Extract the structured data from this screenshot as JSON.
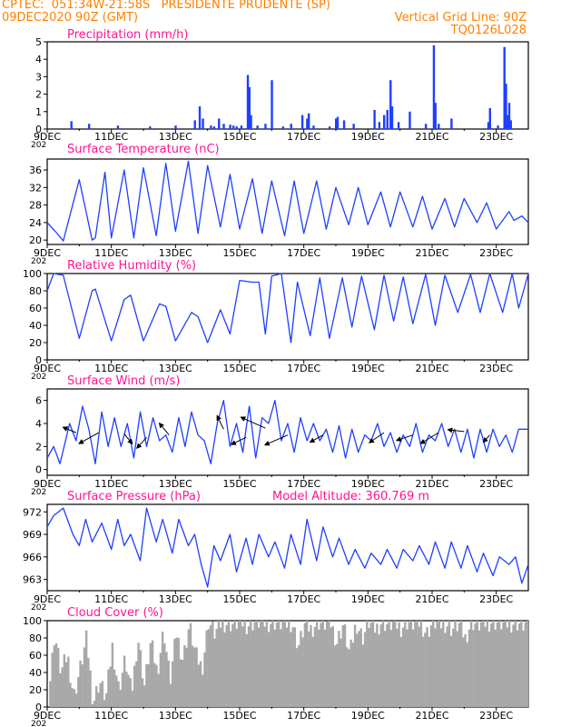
{
  "header": {
    "line1_left": "CPTEC:  051:34W-21:58S   PRESIDENTE PRUDENTE (SP)",
    "line2_left": "09DEC2020 90Z (GMT)",
    "line2_right": "Vertical Grid Line: 90Z",
    "line3_right": "TQ0126L028",
    "color": "#ff7f00",
    "year_stub": "202"
  },
  "colors": {
    "title": "#ff1493",
    "series": "#1f3fff",
    "bar": "#1f3fff",
    "arrow": "#000000",
    "cloud": "#a8a8a8",
    "axis": "#000000"
  },
  "x_ticks": [
    "9DEC",
    "11DEC",
    "13DEC",
    "15DEC",
    "17DEC",
    "19DEC",
    "21DEC",
    "23DEC"
  ],
  "chart_data": [
    {
      "id": "precip",
      "type": "bar",
      "title": "Precipitation  (mm/h)",
      "ylim": [
        0,
        5
      ],
      "yticks": [
        "0",
        "1",
        "2",
        "3",
        "4",
        "5"
      ],
      "x": [
        0.75,
        1.3,
        2.2,
        3.2,
        4.0,
        4.6,
        4.75,
        4.85,
        5.1,
        5.2,
        5.35,
        5.5,
        5.7,
        5.8,
        5.9,
        6.05,
        6.25,
        6.3,
        6.35,
        6.55,
        6.8,
        7.0,
        7.35,
        7.6,
        7.95,
        8.1,
        8.15,
        8.3,
        8.8,
        9.0,
        9.05,
        9.25,
        9.55,
        10.2,
        10.35,
        10.5,
        10.6,
        10.7,
        10.75,
        10.95,
        11.3,
        11.8,
        12.05,
        12.1,
        12.2,
        12.6,
        13.75,
        13.8,
        14.05,
        14.25,
        14.3,
        14.35,
        14.4,
        14.45
      ],
      "values": [
        0.45,
        0.3,
        0.2,
        0.15,
        0.2,
        0.5,
        1.3,
        0.6,
        0.2,
        0.15,
        0.6,
        0.3,
        0.25,
        0.2,
        0.15,
        0.2,
        3.1,
        2.4,
        0.8,
        0.2,
        0.3,
        2.8,
        0.15,
        0.3,
        0.8,
        0.6,
        0.9,
        0.2,
        0.15,
        0.6,
        0.7,
        0.5,
        0.3,
        1.1,
        0.4,
        0.8,
        1.1,
        2.8,
        1.3,
        0.4,
        1.0,
        0.3,
        4.8,
        1.5,
        0.3,
        0.6,
        0.4,
        1.2,
        0.2,
        4.7,
        2.6,
        0.8,
        1.5,
        0.5
      ]
    },
    {
      "id": "temp",
      "type": "line",
      "title": "Surface Temperature (nC)",
      "ylim": [
        19,
        38.5
      ],
      "yticks": [
        "20",
        "24",
        "28",
        "32",
        "36"
      ],
      "ytick_values": [
        20,
        24,
        28,
        32,
        36
      ],
      "x": [
        0,
        0.25,
        0.5,
        1.0,
        1.4,
        1.5,
        1.8,
        2.0,
        2.4,
        2.7,
        3.0,
        3.4,
        3.7,
        4.0,
        4.4,
        4.7,
        5.0,
        5.4,
        5.7,
        6.0,
        6.4,
        6.7,
        7.0,
        7.4,
        7.7,
        8.0,
        8.4,
        8.7,
        9.0,
        9.4,
        9.7,
        10.0,
        10.4,
        10.7,
        11.0,
        11.4,
        11.7,
        12.0,
        12.4,
        12.7,
        13.0,
        13.4,
        13.7,
        14.0,
        14.4,
        14.55,
        14.8,
        15.0
      ],
      "values": [
        24,
        22,
        19.8,
        33.8,
        20,
        20.5,
        35.5,
        20.5,
        36,
        20.5,
        36.5,
        21,
        37.5,
        22,
        38,
        21.5,
        37,
        23,
        35,
        22.5,
        34,
        21.5,
        33.5,
        21,
        33.5,
        21.5,
        33.5,
        22.5,
        32,
        23.5,
        32,
        23.5,
        31,
        23,
        31,
        23,
        30,
        22.5,
        29.5,
        23,
        29.5,
        24,
        28.5,
        22.5,
        26.5,
        24.5,
        25.5,
        24
      ]
    },
    {
      "id": "rh",
      "type": "line",
      "title": "Relative Humidity  (%)",
      "ylim": [
        0,
        100
      ],
      "yticks": [
        "0",
        "20",
        "40",
        "60",
        "80",
        "100"
      ],
      "ytick_values": [
        0,
        20,
        40,
        60,
        80,
        100
      ],
      "x": [
        0,
        0.2,
        0.5,
        1.0,
        1.4,
        1.5,
        2.0,
        2.4,
        2.6,
        3.0,
        3.5,
        3.7,
        4.0,
        4.5,
        4.7,
        5.0,
        5.4,
        5.7,
        6.0,
        6.4,
        6.5,
        6.6,
        6.8,
        7.0,
        7.3,
        7.6,
        7.8,
        8.2,
        8.5,
        8.8,
        9.2,
        9.5,
        9.8,
        10.2,
        10.5,
        10.8,
        11.1,
        11.4,
        11.8,
        12.1,
        12.4,
        12.8,
        13.2,
        13.5,
        13.8,
        14.2,
        14.5,
        14.7,
        15.0
      ],
      "values": [
        80,
        100,
        98,
        25,
        80,
        82,
        22,
        70,
        75,
        22,
        65,
        62,
        22,
        55,
        50,
        20,
        58,
        30,
        92,
        90,
        90,
        90,
        30,
        97,
        100,
        20,
        90,
        28,
        95,
        25,
        95,
        38,
        97,
        35,
        98,
        45,
        96,
        42,
        99,
        40,
        98,
        55,
        99,
        55,
        100,
        55,
        100,
        60,
        100
      ]
    },
    {
      "id": "wind",
      "type": "line",
      "title": "Surface Wind  (m/s)",
      "ylim": [
        -0.5,
        7
      ],
      "yticks": [
        "0",
        "2",
        "4",
        "6"
      ],
      "ytick_values": [
        0,
        2,
        4,
        6
      ],
      "x": [
        0,
        0.2,
        0.4,
        0.7,
        0.9,
        1.1,
        1.3,
        1.5,
        1.7,
        1.9,
        2.1,
        2.3,
        2.5,
        2.7,
        2.9,
        3.1,
        3.3,
        3.5,
        3.7,
        3.9,
        4.1,
        4.3,
        4.5,
        4.7,
        4.9,
        5.1,
        5.3,
        5.5,
        5.7,
        5.9,
        6.1,
        6.3,
        6.5,
        6.7,
        6.9,
        7.1,
        7.3,
        7.5,
        7.7,
        7.9,
        8.1,
        8.3,
        8.5,
        8.7,
        8.9,
        9.1,
        9.3,
        9.5,
        9.7,
        9.9,
        10.1,
        10.3,
        10.5,
        10.7,
        10.9,
        11.1,
        11.3,
        11.5,
        11.7,
        11.9,
        12.1,
        12.3,
        12.5,
        12.7,
        12.9,
        13.1,
        13.3,
        13.5,
        13.7,
        13.9,
        14.1,
        14.3,
        14.5,
        14.7,
        15.0
      ],
      "values": [
        1.0,
        2.0,
        0.5,
        4.0,
        2.5,
        5.5,
        3.5,
        0.5,
        5.0,
        2.0,
        4.5,
        2.0,
        4.0,
        1.0,
        5.0,
        2.0,
        4.5,
        2.5,
        3.0,
        1.5,
        4.5,
        2.0,
        5.0,
        3.0,
        2.5,
        0.5,
        4.0,
        6.0,
        2.0,
        4.0,
        1.5,
        5.5,
        1.0,
        4.5,
        4.0,
        6.0,
        2.5,
        4.0,
        1.5,
        4.5,
        2.5,
        4.0,
        2.5,
        3.5,
        1.5,
        3.8,
        1.0,
        3.5,
        1.5,
        3.0,
        2.5,
        4.0,
        2.0,
        3.2,
        1.5,
        3.0,
        2.0,
        4.0,
        1.5,
        3.0,
        2.5,
        4.0,
        2.0,
        3.5,
        1.5,
        3.5,
        1.0,
        3.5,
        1.5,
        3.5,
        2.0,
        3.0,
        1.5,
        3.5,
        3.5
      ],
      "barbs": [
        {
          "x": 0.9,
          "y": 3.2,
          "u": -0.8,
          "v": 0.6
        },
        {
          "x": 1.6,
          "y": 3.2,
          "u": -1.2,
          "v": -1.2
        },
        {
          "x": 2.4,
          "y": 3.1,
          "u": 0.5,
          "v": -1.1
        },
        {
          "x": 3.1,
          "y": 2.8,
          "u": -0.6,
          "v": -1.2
        },
        {
          "x": 3.8,
          "y": 3.0,
          "u": -0.6,
          "v": 1.3
        },
        {
          "x": 5.5,
          "y": 3.5,
          "u": -0.4,
          "v": 1.5
        },
        {
          "x": 6.2,
          "y": 2.8,
          "u": -0.9,
          "v": -0.8
        },
        {
          "x": 6.8,
          "y": 3.6,
          "u": -1.5,
          "v": 1.2
        },
        {
          "x": 7.5,
          "y": 3.0,
          "u": -1.4,
          "v": -1.1
        },
        {
          "x": 8.6,
          "y": 3.0,
          "u": -0.8,
          "v": -0.8
        },
        {
          "x": 10.5,
          "y": 3.2,
          "u": -0.9,
          "v": -1.1
        },
        {
          "x": 11.4,
          "y": 3.0,
          "u": -1.0,
          "v": -0.6
        },
        {
          "x": 12.2,
          "y": 3.2,
          "u": -1.1,
          "v": -1.2
        },
        {
          "x": 13.0,
          "y": 3.3,
          "u": -1.0,
          "v": 0.2
        },
        {
          "x": 13.8,
          "y": 3.0,
          "u": -0.4,
          "v": -0.8
        }
      ]
    },
    {
      "id": "press",
      "type": "line",
      "title": "Surface Pressure (hPa)",
      "ylim": [
        961.5,
        973
      ],
      "yticks": [
        "963",
        "966",
        "969",
        "972"
      ],
      "ytick_values": [
        963,
        966,
        969,
        972
      ],
      "x": [
        0,
        0.2,
        0.5,
        0.8,
        1.0,
        1.2,
        1.4,
        1.7,
        2.0,
        2.2,
        2.4,
        2.6,
        2.9,
        3.1,
        3.4,
        3.6,
        3.9,
        4.1,
        4.4,
        4.6,
        4.8,
        5.0,
        5.2,
        5.4,
        5.7,
        5.9,
        6.2,
        6.4,
        6.6,
        6.9,
        7.1,
        7.4,
        7.6,
        7.9,
        8.1,
        8.4,
        8.6,
        8.9,
        9.1,
        9.4,
        9.6,
        9.9,
        10.1,
        10.4,
        10.6,
        10.9,
        11.1,
        11.4,
        11.6,
        11.9,
        12.1,
        12.4,
        12.6,
        12.9,
        13.1,
        13.4,
        13.6,
        13.9,
        14.1,
        14.4,
        14.6,
        14.8,
        15.0
      ],
      "values": [
        970,
        971.5,
        972.5,
        969.0,
        967.5,
        971.0,
        968.0,
        970.5,
        967.0,
        971.0,
        967.5,
        969.0,
        965.5,
        972.5,
        968.0,
        971.0,
        966.5,
        971.0,
        967.5,
        969.0,
        965.0,
        962.0,
        967.5,
        965.5,
        969.0,
        964.0,
        968.5,
        965.0,
        969.0,
        966.0,
        968.0,
        964.5,
        969.0,
        965.0,
        971.0,
        965.5,
        970.0,
        966.0,
        968.5,
        965.0,
        967.0,
        964.5,
        966.5,
        965.0,
        967.0,
        964.5,
        967.0,
        965.5,
        967.5,
        965.0,
        968.0,
        964.5,
        968.0,
        964.5,
        967.5,
        964.0,
        966.5,
        963.5,
        966.0,
        965.0,
        966.0,
        962.5,
        965.0
      ]
    },
    {
      "id": "cloud",
      "type": "area",
      "title": "Cloud Cover  (%)",
      "ylim": [
        0,
        100
      ],
      "yticks": [
        "0",
        "20",
        "40",
        "60",
        "80",
        "100"
      ],
      "ytick_values": [
        0,
        20,
        40,
        60,
        80,
        100
      ],
      "x": [
        0,
        0.2,
        0.4,
        0.6,
        0.8,
        1.0,
        1.2,
        1.4,
        1.6,
        1.8,
        2.0,
        2.2,
        2.4,
        2.6,
        2.8,
        3.0,
        3.2,
        3.4,
        3.6,
        3.8,
        4.0,
        4.2,
        4.4,
        4.6,
        4.8,
        5.0,
        5.2,
        5.4,
        5.6,
        5.8,
        6.0,
        6.2,
        6.4,
        6.6,
        6.8,
        7.0,
        7.2,
        7.4,
        7.6,
        7.8,
        8.0,
        8.2,
        8.4,
        8.6,
        8.8,
        9.0,
        9.2,
        9.4,
        9.6,
        9.8,
        10.0,
        10.2,
        10.4,
        10.6,
        10.8,
        11.0,
        11.2,
        11.4,
        11.6,
        11.8,
        12.0,
        12.2,
        12.4,
        12.6,
        12.8,
        13.0,
        13.2,
        13.4,
        13.6,
        13.8,
        14.0,
        14.2,
        14.4,
        14.6,
        14.8,
        15.0
      ],
      "values": [
        8,
        85,
        40,
        60,
        12,
        45,
        80,
        5,
        30,
        10,
        70,
        20,
        55,
        15,
        80,
        25,
        75,
        40,
        90,
        30,
        85,
        55,
        95,
        60,
        45,
        99,
        85,
        98,
        97,
        96,
        99,
        95,
        98,
        99,
        97,
        99,
        97,
        96,
        98,
        70,
        95,
        90,
        99,
        96,
        98,
        75,
        96,
        60,
        98,
        80,
        98,
        90,
        99,
        95,
        97,
        92,
        99,
        96,
        98,
        85,
        99,
        95,
        97,
        90,
        96,
        80,
        99,
        95,
        97,
        99,
        98,
        96,
        97,
        98,
        95,
        98
      ]
    }
  ],
  "extra_labels": {
    "model_altitude": "Model Altitude: 360.769  m"
  }
}
